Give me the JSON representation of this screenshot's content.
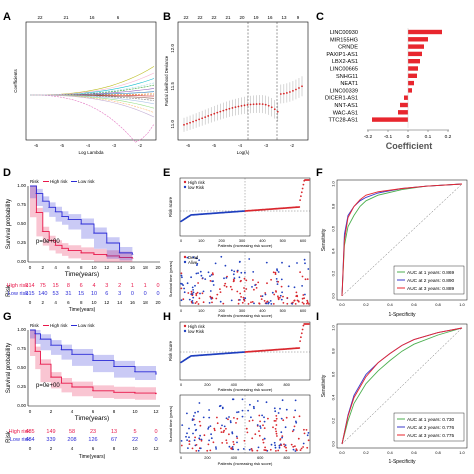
{
  "colors": {
    "high": "#e8174a",
    "low": "#2b2bd6",
    "red_pts": "#d9272e",
    "blue_pts": "#1f3fbf",
    "bar": "#e8262e",
    "grey": "#888888",
    "roc1": "#4caf50",
    "roc2": "#3a3acb",
    "roc3": "#e8262e"
  },
  "panels": {
    "A": {
      "letter": "A",
      "xlabel": "Log Lambda",
      "ylabel": "Coefficients",
      "top_ticks": [
        "22",
        "21",
        "16",
        "6",
        ""
      ],
      "x_ticks": [
        "-6",
        "-5",
        "-4",
        "-3",
        "-2"
      ]
    },
    "B": {
      "letter": "B",
      "xlabel": "Log(λ)",
      "ylabel": "Partial Likelihood Deviance",
      "top_ticks": [
        "22",
        "22",
        "22",
        "21",
        "20",
        "19",
        "16",
        "13",
        "9"
      ],
      "x_ticks": [
        "-6",
        "-5",
        "-4",
        "-3",
        "-2"
      ],
      "y_ticks": [
        "11.0",
        "11.5",
        "12.0"
      ]
    },
    "C": {
      "letter": "C",
      "xlabel": "Coefficient",
      "genes": [
        "LINC00930",
        "MIR155HG",
        "CRNDE",
        "PAXIP1-AS1",
        "LBX2-AS1",
        "LINC00665",
        "SNHG11",
        "NEAT1",
        "LINC00339",
        "DICER1-AS1",
        "NNT-AS1",
        "WAC-AS1",
        "TTC28-AS1"
      ],
      "coefs": [
        0.17,
        0.1,
        0.08,
        0.07,
        0.06,
        0.05,
        0.045,
        0.03,
        0.02,
        -0.02,
        -0.04,
        -0.05,
        -0.18
      ],
      "x_ticks": [
        "-0.2",
        "-0.1",
        "0",
        "0.1",
        "0.2"
      ]
    },
    "D": {
      "letter": "D",
      "ylabel": "Survival probability",
      "xlabel": "Time(years)",
      "risk_legend": "Risk",
      "high_label": "High risk",
      "low_label": "Low risk",
      "pval": "p=0e+00",
      "x_ticks": [
        "0",
        "2",
        "4",
        "6",
        "8",
        "10",
        "12",
        "14",
        "16",
        "18",
        "20"
      ],
      "y_ticks": [
        "0.00",
        "0.25",
        "0.50",
        "0.75",
        "1.00"
      ],
      "risk_title": "Risk",
      "risk_high": [
        "314",
        "75",
        "15",
        "8",
        "6",
        "4",
        "3",
        "2",
        "1",
        "1",
        "0"
      ],
      "risk_low": [
        "315",
        "140",
        "53",
        "31",
        "15",
        "10",
        "6",
        "3",
        "0",
        "0",
        "0"
      ],
      "risk_xlabel": "Time(years)"
    },
    "E": {
      "letter": "E",
      "top_legend": [
        "High risk",
        "low Risk"
      ],
      "top_ylabel": "Risk score",
      "top_xlabel": "Patients (increasing risk score)",
      "bot_legend": [
        "Dead",
        "Alive"
      ],
      "bot_ylabel": "Survival time (years)",
      "bot_xlabel": "Patients (increasing risk score)",
      "x_ticks": [
        "0",
        "100",
        "200",
        "300",
        "400",
        "500",
        "600"
      ]
    },
    "F": {
      "letter": "F",
      "xlabel": "1-Specificity",
      "ylabel": "Sensitivity",
      "auc": [
        "AUC at 1 years: 0.869",
        "AUC at 2 years: 0.890",
        "AUC at 3 years: 0.889"
      ],
      "ticks": [
        "0.0",
        "0.2",
        "0.4",
        "0.6",
        "0.8",
        "1.0"
      ]
    },
    "G": {
      "letter": "G",
      "ylabel": "Survival probability",
      "xlabel": "Time(years)",
      "risk_legend": "Risk",
      "high_label": "High risk",
      "low_label": "Low risk",
      "pval": "p=0e+00",
      "x_ticks": [
        "0",
        "2",
        "4",
        "6",
        "8",
        "10",
        "12"
      ],
      "y_ticks": [
        "0.00",
        "0.25",
        "0.50",
        "0.75",
        "1.00"
      ],
      "risk_title": "Risk",
      "risk_high": [
        "485",
        "149",
        "58",
        "23",
        "13",
        "5",
        "0"
      ],
      "risk_low": [
        "484",
        "339",
        "208",
        "126",
        "67",
        "22",
        "0"
      ],
      "risk_xlabel": "Time(years)"
    },
    "H": {
      "letter": "H",
      "top_legend": [
        "High risk",
        "low Risk"
      ],
      "top_ylabel": "Risk score",
      "top_xlabel": "Patients (increasing risk score)",
      "bot_legend": [
        "Dead",
        "Alive"
      ],
      "bot_ylabel": "Survival time (years)",
      "bot_xlabel": "Patients (increasing risk score)",
      "x_ticks": [
        "0",
        "200",
        "400",
        "600",
        "800"
      ]
    },
    "I": {
      "letter": "I",
      "xlabel": "1-Specificity",
      "ylabel": "Sensitivity",
      "auc": [
        "AUC at 1 years: 0.730",
        "AUC at 2 years: 0.776",
        "AUC at 3 years: 0.775"
      ],
      "ticks": [
        "0.0",
        "0.2",
        "0.4",
        "0.6",
        "0.8",
        "1.0"
      ]
    }
  },
  "chart_data": [
    {
      "type": "line",
      "panel": "A",
      "xlabel": "Log Lambda",
      "ylabel": "Coefficients",
      "xlim": [
        -6.5,
        -1.5
      ]
    },
    {
      "type": "scatter",
      "panel": "B",
      "xlabel": "Log(λ)",
      "ylabel": "Partial Likelihood Deviance",
      "xlim": [
        -6.5,
        -1.5
      ],
      "ylim": [
        10.8,
        12.3
      ],
      "vlines": [
        -3.6,
        -2.5
      ]
    },
    {
      "type": "bar",
      "panel": "C",
      "categories": [
        "LINC00930",
        "MIR155HG",
        "CRNDE",
        "PAXIP1-AS1",
        "LBX2-AS1",
        "LINC00665",
        "SNHG11",
        "NEAT1",
        "LINC00339",
        "DICER1-AS1",
        "NNT-AS1",
        "WAC-AS1",
        "TTC28-AS1"
      ],
      "values": [
        0.17,
        0.1,
        0.08,
        0.07,
        0.06,
        0.05,
        0.045,
        0.03,
        0.02,
        -0.02,
        -0.04,
        -0.05,
        -0.18
      ],
      "xlabel": "Coefficient",
      "xlim": [
        -0.2,
        0.2
      ]
    },
    {
      "type": "line",
      "panel": "D",
      "xlabel": "Time(years)",
      "ylabel": "Survival probability",
      "xlim": [
        0,
        20
      ],
      "ylim": [
        0,
        1
      ],
      "series": [
        {
          "name": "High risk",
          "x": [
            0,
            1,
            2,
            3,
            4,
            5,
            6,
            8,
            10,
            12,
            14,
            16
          ],
          "y": [
            1,
            0.65,
            0.4,
            0.28,
            0.22,
            0.18,
            0.15,
            0.12,
            0.1,
            0.08,
            0.06,
            0.05
          ]
        },
        {
          "name": "Low risk",
          "x": [
            0,
            1,
            2,
            3,
            4,
            5,
            6,
            8,
            10,
            12,
            14,
            16
          ],
          "y": [
            1,
            0.9,
            0.8,
            0.72,
            0.66,
            0.6,
            0.56,
            0.5,
            0.38,
            0.25,
            0.12,
            0.1
          ]
        }
      ]
    },
    {
      "type": "scatter",
      "panel": "E",
      "xlabel": "Patients (increasing risk score)",
      "xlim": [
        0,
        629
      ],
      "cutoff": 315
    },
    {
      "type": "line",
      "panel": "F",
      "xlabel": "1-Specificity",
      "ylabel": "Sensitivity",
      "xlim": [
        0,
        1
      ],
      "ylim": [
        0,
        1
      ],
      "series": [
        {
          "name": "AUC at 1 years: 0.869",
          "x": [
            0,
            0.02,
            0.05,
            0.1,
            0.15,
            0.2,
            0.3,
            0.5,
            0.7,
            1
          ],
          "y": [
            0,
            0.45,
            0.62,
            0.72,
            0.8,
            0.85,
            0.9,
            0.95,
            0.98,
            1
          ]
        },
        {
          "name": "AUC at 2 years: 0.890",
          "x": [
            0,
            0.02,
            0.05,
            0.1,
            0.15,
            0.2,
            0.3,
            0.5,
            0.7,
            1
          ],
          "y": [
            0,
            0.55,
            0.72,
            0.8,
            0.85,
            0.88,
            0.92,
            0.96,
            0.98,
            1
          ]
        },
        {
          "name": "AUC at 3 years: 0.889",
          "x": [
            0,
            0.02,
            0.05,
            0.1,
            0.15,
            0.2,
            0.3,
            0.5,
            0.7,
            1
          ],
          "y": [
            0,
            0.5,
            0.7,
            0.8,
            0.86,
            0.9,
            0.93,
            0.96,
            0.98,
            1
          ]
        }
      ]
    },
    {
      "type": "line",
      "panel": "G",
      "xlabel": "Time(years)",
      "ylabel": "Survival probability",
      "xlim": [
        0,
        12
      ],
      "ylim": [
        0,
        1
      ],
      "series": [
        {
          "name": "High risk",
          "x": [
            0,
            0.5,
            1,
            2,
            3,
            4,
            6,
            8,
            10,
            12
          ],
          "y": [
            1,
            0.72,
            0.55,
            0.38,
            0.3,
            0.25,
            0.2,
            0.18,
            0.17,
            0.16
          ]
        },
        {
          "name": "Low risk",
          "x": [
            0,
            0.5,
            1,
            2,
            3,
            4,
            6,
            8,
            10,
            12
          ],
          "y": [
            1,
            0.95,
            0.88,
            0.8,
            0.74,
            0.68,
            0.6,
            0.52,
            0.45,
            0.42
          ]
        }
      ]
    },
    {
      "type": "scatter",
      "panel": "H",
      "xlabel": "Patients (increasing risk score)",
      "xlim": [
        0,
        969
      ],
      "cutoff": 485
    },
    {
      "type": "line",
      "panel": "I",
      "xlabel": "1-Specificity",
      "ylabel": "Sensitivity",
      "xlim": [
        0,
        1
      ],
      "ylim": [
        0,
        1
      ],
      "series": [
        {
          "name": "AUC at 1 years: 0.730",
          "x": [
            0,
            0.05,
            0.1,
            0.2,
            0.3,
            0.4,
            0.5,
            0.6,
            0.8,
            1
          ],
          "y": [
            0,
            0.2,
            0.35,
            0.52,
            0.63,
            0.72,
            0.8,
            0.86,
            0.94,
            1
          ]
        },
        {
          "name": "AUC at 2 years: 0.776",
          "x": [
            0,
            0.05,
            0.1,
            0.2,
            0.3,
            0.4,
            0.5,
            0.6,
            0.8,
            1
          ],
          "y": [
            0,
            0.25,
            0.42,
            0.6,
            0.7,
            0.78,
            0.85,
            0.9,
            0.96,
            1
          ]
        },
        {
          "name": "AUC at 3 years: 0.775",
          "x": [
            0,
            0.05,
            0.1,
            0.2,
            0.3,
            0.4,
            0.5,
            0.6,
            0.8,
            1
          ],
          "y": [
            0,
            0.24,
            0.4,
            0.58,
            0.7,
            0.78,
            0.85,
            0.9,
            0.96,
            1
          ]
        }
      ]
    }
  ]
}
